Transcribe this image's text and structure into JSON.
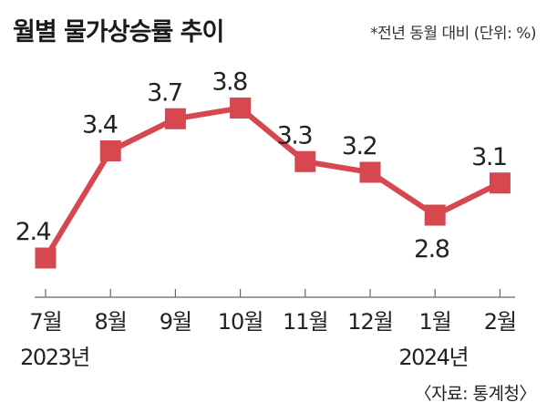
{
  "header": {
    "title": "월별 물가상승률 추이",
    "note": "*전년 동월 대비 (단위: %)"
  },
  "source": "〈자료: 통계청〉",
  "colors": {
    "line": "#d6474f",
    "marker": "#d6474f",
    "axis": "#666666",
    "text": "#222222"
  },
  "chart_data": {
    "type": "line",
    "title": "월별 물가상승률 추이",
    "xlabel": "",
    "ylabel": "",
    "unit_note": "*전년 동월 대비 (단위: %)",
    "categories": [
      "7월",
      "8월",
      "9월",
      "10월",
      "11월",
      "12월",
      "1월",
      "2월"
    ],
    "year_labels": [
      {
        "text": "2023년",
        "category_index": 0
      },
      {
        "text": "2024년",
        "category_index": 6
      }
    ],
    "series": [
      {
        "name": "",
        "values": [
          2.4,
          3.4,
          3.7,
          3.8,
          3.3,
          3.2,
          2.8,
          3.1
        ],
        "value_labels": [
          "2.4",
          "3.4",
          "3.7",
          "3.8",
          "3.3",
          "3.2",
          "2.8",
          "3.1"
        ]
      }
    ],
    "grid": false,
    "legend": "none",
    "source": "〈자료: 통계청〉"
  }
}
